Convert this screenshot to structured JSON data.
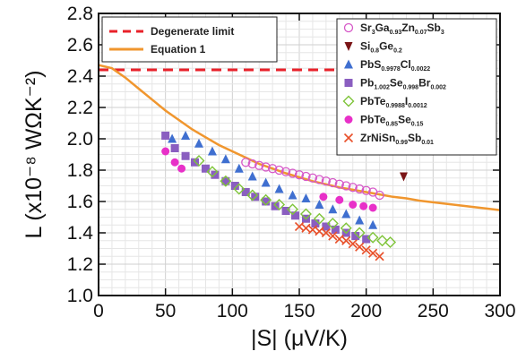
{
  "chart_data": {
    "type": "scatter",
    "title": "",
    "xlabel": "|S| (μV/K)",
    "ylabel": "L (x10⁻⁸ WΩK⁻²)",
    "xlim": [
      0,
      300
    ],
    "ylim": [
      1.0,
      2.8
    ],
    "x_ticks": [
      "0",
      "50",
      "100",
      "150",
      "200",
      "250",
      "300"
    ],
    "y_ticks": [
      "1.0",
      "1.2",
      "1.4",
      "1.6",
      "1.8",
      "2.0",
      "2.2",
      "2.4",
      "2.6",
      "2.8"
    ],
    "grid": true,
    "lines": [
      {
        "name": "Degenerate limit",
        "style": "dashed",
        "color": "#e8212a",
        "y": 2.44
      },
      {
        "name": "Equation 1",
        "style": "solid",
        "color": "#f0962e",
        "points": [
          [
            0,
            2.47
          ],
          [
            10,
            2.45
          ],
          [
            20,
            2.39
          ],
          [
            30,
            2.32
          ],
          [
            40,
            2.25
          ],
          [
            50,
            2.18
          ],
          [
            60,
            2.12
          ],
          [
            70,
            2.06
          ],
          [
            80,
            2.01
          ],
          [
            90,
            1.96
          ],
          [
            100,
            1.92
          ],
          [
            110,
            1.88
          ],
          [
            120,
            1.84
          ],
          [
            130,
            1.81
          ],
          [
            140,
            1.78
          ],
          [
            150,
            1.755
          ],
          [
            160,
            1.73
          ],
          [
            170,
            1.71
          ],
          [
            180,
            1.69
          ],
          [
            190,
            1.675
          ],
          [
            200,
            1.66
          ],
          [
            210,
            1.645
          ],
          [
            220,
            1.63
          ],
          [
            230,
            1.62
          ],
          [
            240,
            1.605
          ],
          [
            250,
            1.595
          ],
          [
            260,
            1.585
          ],
          [
            270,
            1.575
          ],
          [
            280,
            1.565
          ],
          [
            290,
            1.555
          ],
          [
            300,
            1.545
          ]
        ]
      }
    ],
    "series": [
      {
        "name": "Sr3Ga0.93Zn0.07Sb3",
        "parts": [
          [
            "Sr",
            ""
          ],
          [
            "3",
            "sub"
          ],
          [
            "Ga",
            ""
          ],
          [
            "0.93",
            "sub"
          ],
          [
            "Zn",
            ""
          ],
          [
            "0.07",
            "sub"
          ],
          [
            "Sb",
            ""
          ],
          [
            "3",
            "sub"
          ]
        ],
        "marker": "circle-open",
        "color": "#d658c8",
        "points": [
          [
            110,
            1.85
          ],
          [
            115,
            1.84
          ],
          [
            120,
            1.83
          ],
          [
            125,
            1.82
          ],
          [
            130,
            1.81
          ],
          [
            135,
            1.8
          ],
          [
            140,
            1.79
          ],
          [
            145,
            1.78
          ],
          [
            150,
            1.77
          ],
          [
            155,
            1.76
          ],
          [
            160,
            1.75
          ],
          [
            165,
            1.74
          ],
          [
            170,
            1.73
          ],
          [
            175,
            1.72
          ],
          [
            180,
            1.71
          ],
          [
            185,
            1.7
          ],
          [
            190,
            1.69
          ],
          [
            195,
            1.68
          ],
          [
            200,
            1.67
          ],
          [
            205,
            1.66
          ],
          [
            210,
            1.64
          ]
        ]
      },
      {
        "name": "Si0.8Ge0.2",
        "parts": [
          [
            "Si",
            ""
          ],
          [
            "0.8",
            "sub"
          ],
          [
            "Ge",
            ""
          ],
          [
            "0.2",
            "sub"
          ]
        ],
        "marker": "triangle-down",
        "color": "#7a1416",
        "points": [
          [
            228,
            1.76
          ]
        ]
      },
      {
        "name": "PbS0.9978Cl0.0022",
        "parts": [
          [
            "PbS",
            ""
          ],
          [
            "0.9978",
            "sub"
          ],
          [
            "Cl",
            ""
          ],
          [
            "0.0022",
            "sub"
          ]
        ],
        "marker": "triangle-up",
        "color": "#3f6fd0",
        "points": [
          [
            55,
            2.0
          ],
          [
            65,
            2.02
          ],
          [
            75,
            1.97
          ],
          [
            85,
            1.92
          ],
          [
            95,
            1.87
          ],
          [
            105,
            1.81
          ],
          [
            115,
            1.76
          ],
          [
            125,
            1.72
          ],
          [
            135,
            1.68
          ],
          [
            145,
            1.64
          ],
          [
            155,
            1.62
          ],
          [
            165,
            1.58
          ],
          [
            175,
            1.55
          ],
          [
            185,
            1.52
          ],
          [
            195,
            1.48
          ],
          [
            205,
            1.45
          ]
        ]
      },
      {
        "name": "Pb1.002Se0.998Br0.002",
        "parts": [
          [
            "Pb",
            ""
          ],
          [
            "1.002",
            "sub"
          ],
          [
            "Se",
            ""
          ],
          [
            "0.998",
            "sub"
          ],
          [
            "Br",
            ""
          ],
          [
            "0.002",
            "sub"
          ]
        ],
        "marker": "square",
        "color": "#8a5ec0",
        "points": [
          [
            50,
            2.02
          ],
          [
            57,
            1.94
          ],
          [
            65,
            1.89
          ],
          [
            72,
            1.85
          ],
          [
            80,
            1.81
          ],
          [
            87,
            1.77
          ],
          [
            95,
            1.73
          ],
          [
            102,
            1.7
          ],
          [
            110,
            1.66
          ],
          [
            117,
            1.63
          ],
          [
            125,
            1.6
          ],
          [
            132,
            1.57
          ],
          [
            140,
            1.54
          ],
          [
            147,
            1.51
          ],
          [
            155,
            1.49
          ],
          [
            162,
            1.46
          ],
          [
            170,
            1.44
          ],
          [
            177,
            1.42
          ],
          [
            185,
            1.4
          ],
          [
            192,
            1.38
          ],
          [
            200,
            1.36
          ]
        ]
      },
      {
        "name": "PbTe0.9988I0.0012",
        "parts": [
          [
            "PbTe",
            ""
          ],
          [
            "0.9988",
            "sub"
          ],
          [
            "I",
            ""
          ],
          [
            "0.0012",
            "sub"
          ]
        ],
        "marker": "diamond-open",
        "color": "#7fc43a",
        "points": [
          [
            75,
            1.86
          ],
          [
            85,
            1.79
          ],
          [
            95,
            1.73
          ],
          [
            105,
            1.68
          ],
          [
            115,
            1.64
          ],
          [
            125,
            1.61
          ],
          [
            135,
            1.58
          ],
          [
            145,
            1.55
          ],
          [
            155,
            1.52
          ],
          [
            165,
            1.49
          ],
          [
            175,
            1.46
          ],
          [
            185,
            1.43
          ],
          [
            195,
            1.4
          ],
          [
            205,
            1.37
          ],
          [
            212,
            1.35
          ],
          [
            218,
            1.34
          ]
        ]
      },
      {
        "name": "PbTe0.85Se0.15",
        "parts": [
          [
            "PbTe",
            ""
          ],
          [
            "0.85",
            "sub"
          ],
          [
            "Se",
            ""
          ],
          [
            "0.15",
            "sub"
          ]
        ],
        "marker": "circle",
        "color": "#e830c8",
        "points": [
          [
            50,
            1.92
          ],
          [
            57,
            1.85
          ],
          [
            62,
            1.81
          ],
          [
            168,
            1.63
          ],
          [
            180,
            1.61
          ],
          [
            190,
            1.58
          ],
          [
            198,
            1.57
          ],
          [
            205,
            1.56
          ]
        ]
      },
      {
        "name": "ZrNiSn0.99Sb0.01",
        "parts": [
          [
            "ZrNiSn",
            ""
          ],
          [
            "0.99",
            "sub"
          ],
          [
            "Sb",
            ""
          ],
          [
            "0.01",
            "sub"
          ]
        ],
        "marker": "x",
        "color": "#e8502a",
        "points": [
          [
            150,
            1.44
          ],
          [
            155,
            1.43
          ],
          [
            160,
            1.42
          ],
          [
            165,
            1.41
          ],
          [
            170,
            1.4
          ],
          [
            175,
            1.38
          ],
          [
            180,
            1.36
          ],
          [
            185,
            1.35
          ],
          [
            190,
            1.33
          ],
          [
            195,
            1.31
          ],
          [
            200,
            1.29
          ],
          [
            205,
            1.27
          ],
          [
            210,
            1.25
          ]
        ]
      }
    ]
  },
  "legend_left": {
    "items": [
      {
        "label": "Degenerate limit",
        "color": "#e8212a",
        "style": "dashed"
      },
      {
        "label": "Equation 1",
        "color": "#f0962e",
        "style": "solid"
      }
    ]
  }
}
